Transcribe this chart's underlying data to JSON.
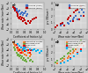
{
  "figure_bg": "#c8c8c8",
  "axes_bg": "#d4d4d4",
  "subplots": [
    {
      "title": "a)",
      "xlabel": "Coefficient of friction (µ)",
      "ylabel": "Wear rate (mm³/Nm)",
      "xlim": [
        0.0,
        1.0
      ],
      "ylim": [
        -7,
        -2
      ],
      "xticks": [
        0.0,
        0.2,
        0.4,
        0.6,
        0.8,
        1.0
      ],
      "yticks": [
        -7,
        -6,
        -5,
        -4,
        -3,
        -2
      ],
      "legend": [
        "Alumina (Al₂O₃)",
        "Zirconia (ZrO₂)"
      ],
      "legend_colors": [
        "#4472c4",
        "#c00000"
      ],
      "series": [
        {
          "color": "#4472c4",
          "pts": [
            [
              0.08,
              -3.1
            ],
            [
              0.1,
              -3.3
            ],
            [
              0.12,
              -3.0
            ],
            [
              0.15,
              -3.5
            ],
            [
              0.15,
              -3.2
            ],
            [
              0.18,
              -4.0
            ],
            [
              0.2,
              -3.8
            ],
            [
              0.22,
              -3.6
            ],
            [
              0.25,
              -3.5
            ],
            [
              0.28,
              -4.2
            ],
            [
              0.3,
              -4.0
            ],
            [
              0.32,
              -3.8
            ],
            [
              0.35,
              -4.3
            ],
            [
              0.38,
              -3.9
            ],
            [
              0.4,
              -4.0
            ],
            [
              0.42,
              -3.7
            ],
            [
              0.45,
              -4.5
            ],
            [
              0.48,
              -4.1
            ]
          ]
        },
        {
          "color": "#c00000",
          "pts": [
            [
              0.05,
              -2.8
            ],
            [
              0.07,
              -3.0
            ],
            [
              0.1,
              -3.5
            ],
            [
              0.12,
              -3.2
            ],
            [
              0.15,
              -3.8
            ],
            [
              0.18,
              -4.5
            ],
            [
              0.2,
              -4.2
            ],
            [
              0.22,
              -4.8
            ],
            [
              0.25,
              -5.0
            ],
            [
              0.28,
              -4.6
            ],
            [
              0.3,
              -5.2
            ],
            [
              0.32,
              -4.8
            ],
            [
              0.35,
              -5.5
            ],
            [
              0.38,
              -5.0
            ],
            [
              0.4,
              -5.3
            ],
            [
              0.42,
              -5.8
            ],
            [
              0.45,
              -6.0
            ],
            [
              0.5,
              -5.5
            ],
            [
              0.55,
              -5.8
            ],
            [
              0.6,
              -5.5
            ],
            [
              0.65,
              -5.2
            ],
            [
              0.7,
              -5.0
            ],
            [
              0.75,
              -4.8
            ]
          ]
        }
      ]
    },
    {
      "title": "b)",
      "xlabel": "Wear rate (mm³/Nm)",
      "ylabel": "p·v (W/mm²)",
      "xlim": [
        -7,
        -2
      ],
      "ylim": [
        0,
        4
      ],
      "xticks": [
        -7,
        -6,
        -5,
        -4,
        -3,
        -2
      ],
      "yticks": [
        0,
        1,
        2,
        3,
        4
      ],
      "legend": [
        "Alumina (Al₂O₃)",
        "Zirconia (ZrO₂)"
      ],
      "legend_colors": [
        "#4472c4",
        "#c00000"
      ],
      "series": [
        {
          "color": "#4472c4",
          "pts": [
            [
              -6.5,
              0.5
            ],
            [
              -6.0,
              0.5
            ],
            [
              -5.8,
              0.8
            ],
            [
              -5.5,
              0.5
            ],
            [
              -5.0,
              1.0
            ],
            [
              -4.8,
              0.8
            ],
            [
              -4.5,
              1.2
            ],
            [
              -4.2,
              1.5
            ],
            [
              -4.0,
              1.8
            ],
            [
              -3.8,
              2.0
            ],
            [
              -3.5,
              1.5
            ],
            [
              -3.2,
              2.5
            ],
            [
              -3.0,
              2.0
            ],
            [
              -2.8,
              3.0
            ],
            [
              -2.5,
              2.5
            ]
          ]
        },
        {
          "color": "#c00000",
          "pts": [
            [
              -6.8,
              0.3
            ],
            [
              -6.5,
              0.5
            ],
            [
              -6.0,
              0.8
            ],
            [
              -5.8,
              1.0
            ],
            [
              -5.5,
              0.5
            ],
            [
              -5.0,
              1.5
            ],
            [
              -4.8,
              1.8
            ],
            [
              -4.5,
              2.0
            ],
            [
              -4.2,
              1.2
            ],
            [
              -4.0,
              2.5
            ],
            [
              -3.8,
              2.8
            ],
            [
              -3.5,
              3.0
            ],
            [
              -3.2,
              1.5
            ],
            [
              -3.0,
              3.5
            ],
            [
              -2.5,
              2.0
            ]
          ]
        }
      ]
    },
    {
      "title": "c)",
      "xlabel": "Coefficient of friction (µ)",
      "ylabel": "Wear rate (mm³/Nm)",
      "xlim": [
        0.0,
        1.0
      ],
      "ylim": [
        -7,
        -2
      ],
      "xticks": [
        0.0,
        0.2,
        0.4,
        0.6,
        0.8,
        1.0
      ],
      "yticks": [
        -7,
        -6,
        -5,
        -4,
        -3,
        -2
      ],
      "legend": [
        "Triboactive oxides",
        "Non-oxide mat.",
        "Oxide mat.",
        "Other"
      ],
      "legend_colors": [
        "#ed7d31",
        "#70ad47",
        "#ff0000",
        "#00b0f0"
      ],
      "series": [
        {
          "color": "#ed7d31",
          "pts": [
            [
              0.05,
              -2.5
            ],
            [
              0.08,
              -2.8
            ],
            [
              0.1,
              -3.0
            ],
            [
              0.12,
              -3.2
            ],
            [
              0.15,
              -3.5
            ],
            [
              0.18,
              -3.8
            ],
            [
              0.2,
              -4.0
            ],
            [
              0.22,
              -4.2
            ],
            [
              0.25,
              -3.8
            ],
            [
              0.28,
              -4.5
            ],
            [
              0.3,
              -4.0
            ],
            [
              0.32,
              -4.3
            ],
            [
              0.35,
              -4.5
            ],
            [
              0.38,
              -4.0
            ],
            [
              0.4,
              -4.8
            ],
            [
              0.42,
              -4.2
            ],
            [
              0.45,
              -5.0
            ],
            [
              0.5,
              -4.5
            ],
            [
              0.55,
              -5.2
            ],
            [
              0.6,
              -4.8
            ]
          ]
        },
        {
          "color": "#70ad47",
          "pts": [
            [
              0.08,
              -3.5
            ],
            [
              0.1,
              -3.8
            ],
            [
              0.12,
              -4.0
            ],
            [
              0.15,
              -4.5
            ],
            [
              0.18,
              -4.8
            ],
            [
              0.2,
              -5.0
            ],
            [
              0.22,
              -4.8
            ],
            [
              0.25,
              -5.2
            ],
            [
              0.28,
              -5.0
            ],
            [
              0.3,
              -5.5
            ],
            [
              0.32,
              -5.2
            ],
            [
              0.35,
              -5.8
            ],
            [
              0.38,
              -5.5
            ],
            [
              0.4,
              -6.0
            ],
            [
              0.42,
              -5.8
            ],
            [
              0.45,
              -6.2
            ],
            [
              0.5,
              -5.5
            ],
            [
              0.55,
              -6.0
            ],
            [
              0.6,
              -5.8
            ],
            [
              0.65,
              -6.2
            ]
          ]
        },
        {
          "color": "#ff0000",
          "pts": [
            [
              0.15,
              -3.0
            ],
            [
              0.2,
              -3.5
            ],
            [
              0.25,
              -4.0
            ],
            [
              0.3,
              -4.5
            ],
            [
              0.35,
              -3.8
            ],
            [
              0.4,
              -4.2
            ],
            [
              0.45,
              -3.5
            ],
            [
              0.5,
              -4.0
            ],
            [
              0.55,
              -4.5
            ],
            [
              0.6,
              -4.0
            ]
          ]
        },
        {
          "color": "#00b0f0",
          "pts": [
            [
              0.2,
              -2.8
            ],
            [
              0.25,
              -3.2
            ],
            [
              0.3,
              -3.5
            ],
            [
              0.35,
              -4.0
            ],
            [
              0.4,
              -3.5
            ],
            [
              0.45,
              -4.0
            ],
            [
              0.5,
              -3.5
            ],
            [
              0.55,
              -3.8
            ],
            [
              0.6,
              -3.5
            ],
            [
              0.65,
              -4.0
            ],
            [
              0.7,
              -3.8
            ],
            [
              0.75,
              -4.2
            ],
            [
              0.8,
              -4.0
            ],
            [
              0.85,
              -4.5
            ],
            [
              0.9,
              -4.2
            ]
          ]
        }
      ]
    },
    {
      "title": "d)",
      "xlabel": "Wear rate (mm³/Nm)",
      "ylabel": "p·v (W/mm²)",
      "xlim": [
        -7,
        -2
      ],
      "ylim": [
        0,
        4
      ],
      "xticks": [
        -7,
        -6,
        -5,
        -4,
        -3,
        -2
      ],
      "yticks": [
        0,
        1,
        2,
        3,
        4
      ],
      "legend": [
        "Triboactive oxides",
        "Non-oxide mat.",
        "Oxide mat.",
        "Other"
      ],
      "legend_colors": [
        "#ed7d31",
        "#70ad47",
        "#ff0000",
        "#00b0f0"
      ],
      "series": [
        {
          "color": "#ed7d31",
          "pts": [
            [
              -6.5,
              0.3
            ],
            [
              -6.0,
              0.5
            ],
            [
              -5.8,
              0.8
            ],
            [
              -5.5,
              1.0
            ],
            [
              -5.0,
              1.2
            ],
            [
              -4.8,
              1.5
            ],
            [
              -4.5,
              1.8
            ],
            [
              -4.2,
              2.0
            ],
            [
              -4.0,
              2.2
            ],
            [
              -3.8,
              2.5
            ],
            [
              -3.5,
              2.8
            ],
            [
              -3.2,
              3.0
            ],
            [
              -3.0,
              3.2
            ],
            [
              -2.8,
              3.5
            ]
          ]
        },
        {
          "color": "#70ad47",
          "pts": [
            [
              -6.8,
              0.5
            ],
            [
              -6.5,
              0.8
            ],
            [
              -6.0,
              1.0
            ],
            [
              -5.8,
              1.2
            ],
            [
              -5.5,
              1.5
            ],
            [
              -5.0,
              1.8
            ],
            [
              -4.8,
              2.0
            ],
            [
              -4.5,
              2.2
            ],
            [
              -4.2,
              2.5
            ],
            [
              -4.0,
              2.8
            ],
            [
              -3.8,
              3.0
            ],
            [
              -3.5,
              3.2
            ],
            [
              -3.2,
              3.5
            ],
            [
              -3.0,
              3.8
            ]
          ]
        },
        {
          "color": "#ff0000",
          "pts": [
            [
              -5.5,
              0.5
            ],
            [
              -5.0,
              0.8
            ],
            [
              -4.5,
              1.2
            ],
            [
              -4.0,
              1.5
            ],
            [
              -3.5,
              2.0
            ],
            [
              -3.0,
              2.5
            ],
            [
              -2.5,
              3.0
            ]
          ]
        },
        {
          "color": "#00b0f0",
          "pts": [
            [
              -6.0,
              0.3
            ],
            [
              -5.5,
              0.5
            ],
            [
              -5.0,
              0.8
            ],
            [
              -4.5,
              1.0
            ],
            [
              -4.0,
              1.5
            ],
            [
              -3.5,
              1.8
            ],
            [
              -3.0,
              2.2
            ],
            [
              -2.5,
              2.8
            ]
          ]
        }
      ]
    }
  ]
}
